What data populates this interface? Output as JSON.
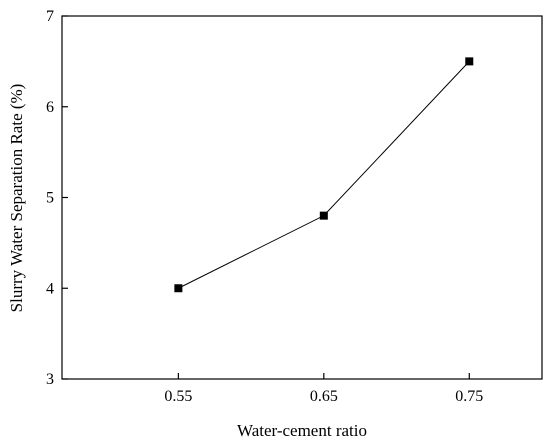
{
  "chart_data": {
    "type": "line",
    "title": "",
    "xlabel": "Water-cement ratio",
    "ylabel": "Slurry Water Separation Rate (%)",
    "x": [
      0.55,
      0.65,
      0.75
    ],
    "x_tick_labels": [
      "0.55",
      "0.65",
      "0.75"
    ],
    "xlim": [
      0.47,
      0.8
    ],
    "ylim": [
      3,
      7
    ],
    "y_ticks": [
      3,
      4,
      5,
      6,
      7
    ],
    "y_tick_labels": [
      "3",
      "4",
      "5",
      "6",
      "7"
    ],
    "series": [
      {
        "values": [
          4.0,
          4.8,
          6.5
        ],
        "marker": "square",
        "color": "#000000"
      }
    ],
    "grid": false,
    "legend": "none"
  }
}
